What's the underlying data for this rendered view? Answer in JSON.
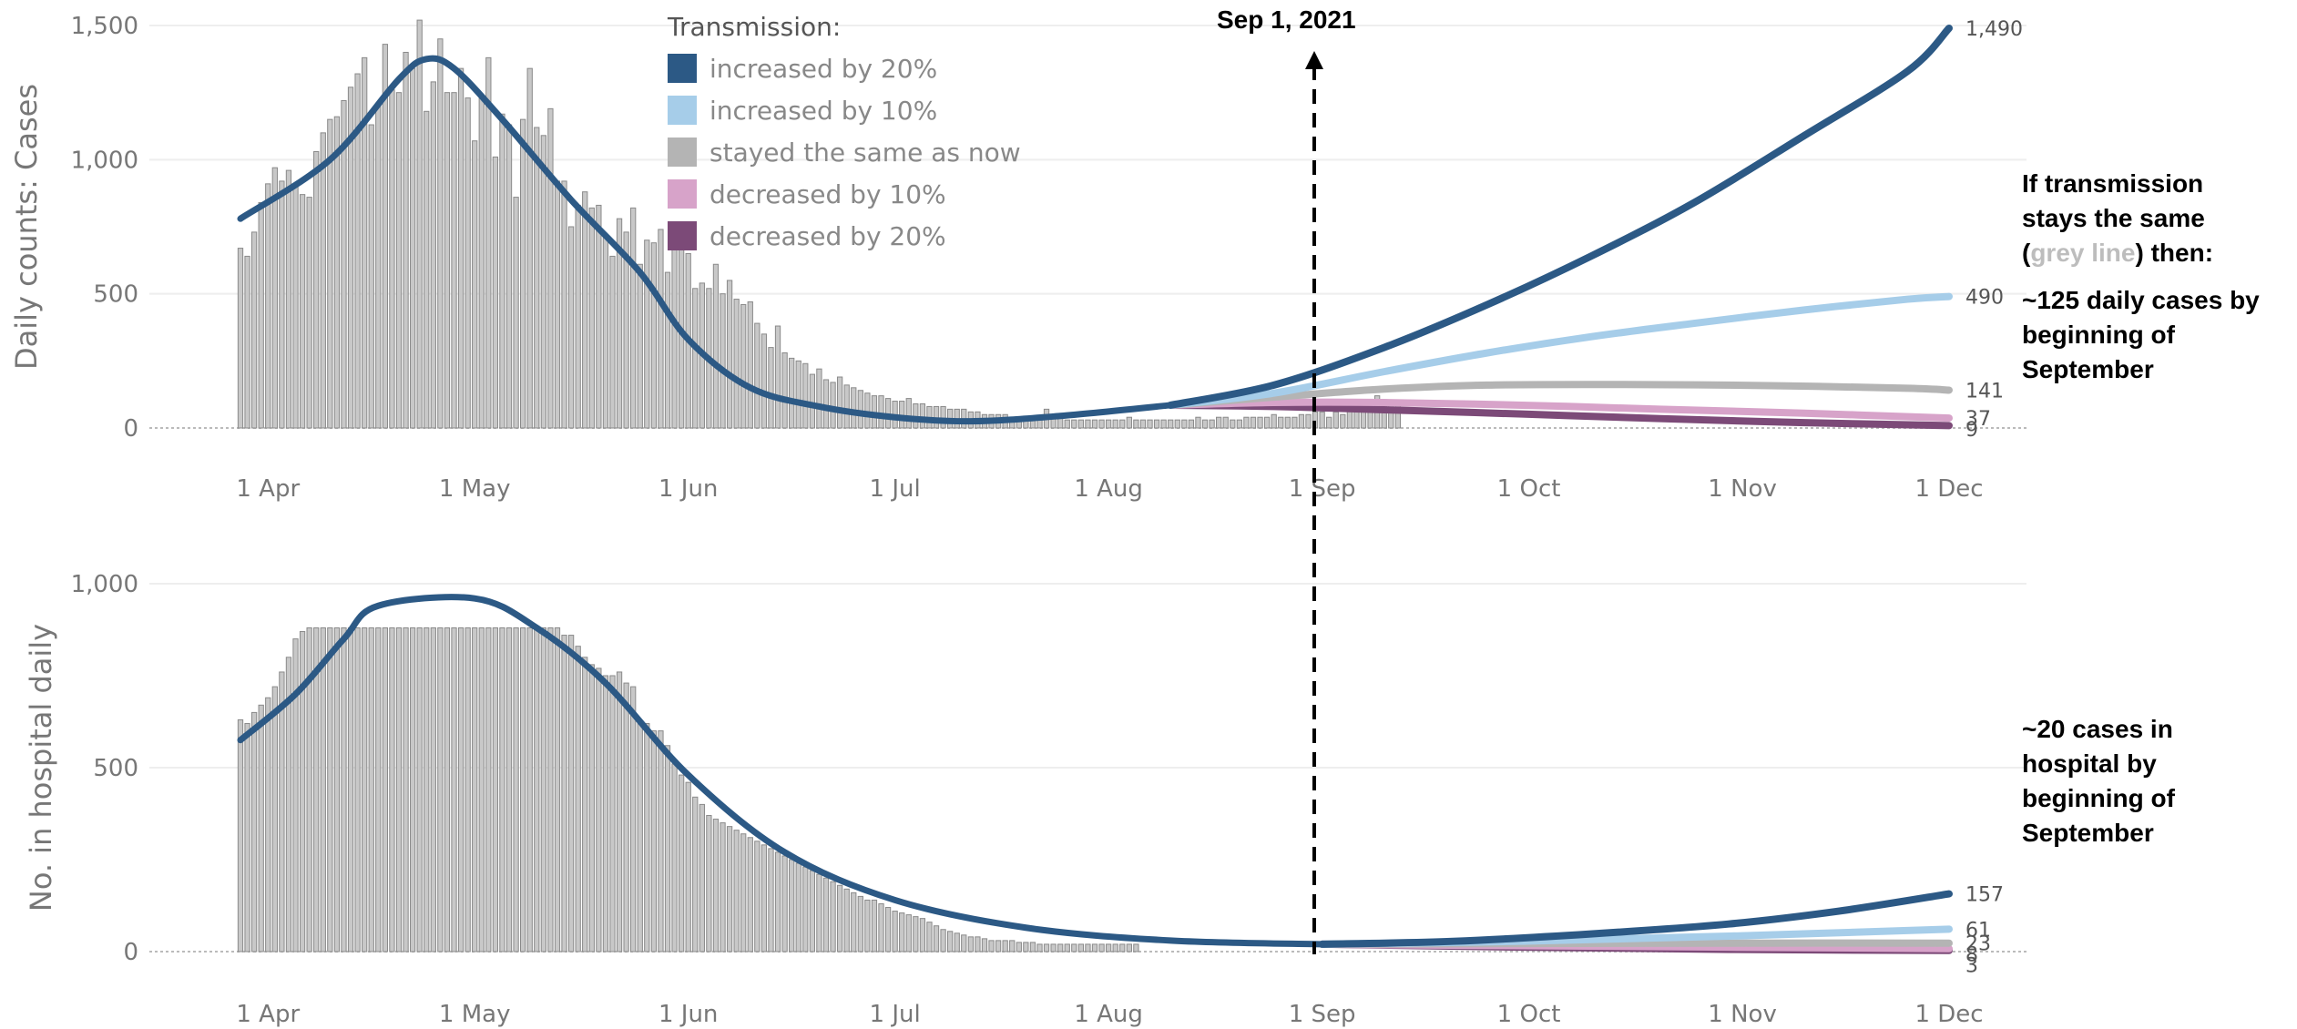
{
  "legend": {
    "title": "Transmission:",
    "items": [
      {
        "label": "increased by 20%",
        "color": "#2c5985"
      },
      {
        "label": "increased by 10%",
        "color": "#a6cde9"
      },
      {
        "label": "stayed the same as now",
        "color": "#b4b4b4"
      },
      {
        "label": "decreased by 10%",
        "color": "#d7a3c9"
      },
      {
        "label": "decreased by 20%",
        "color": "#7c4a78"
      }
    ]
  },
  "annotation": {
    "date_label": "Sep 1, 2021",
    "cases_text": {
      "line1": "If transmission",
      "line2": "stays the same",
      "line3_open": "(",
      "line3_grey": "grey line",
      "line3_close": ") then:",
      "line4": "~125 daily cases by",
      "line5": "beginning of",
      "line6": "September"
    },
    "hospital_text": {
      "line1": "~20 cases in",
      "line2": "hospital by",
      "line3": "beginning of",
      "line4": "September"
    }
  },
  "chart_data": [
    {
      "type": "bar",
      "ylabel": "Daily counts: Cases",
      "ylim": [
        0,
        1500
      ],
      "yticks": [
        0,
        500,
        1000,
        1500
      ],
      "ytick_labels": [
        "0",
        "500",
        "1,000",
        "1,500"
      ],
      "x_start": "2021-03-28",
      "x_end": "2021-12-01",
      "xtick_labels": [
        "1 Apr",
        "1 May",
        "1 Jun",
        "1 Jul",
        "1 Aug",
        "1 Sep",
        "1 Oct",
        "1 Nov",
        "1 Dec"
      ],
      "xtick_dates": [
        "2021-04-01",
        "2021-05-01",
        "2021-06-01",
        "2021-07-01",
        "2021-08-01",
        "2021-09-01",
        "2021-10-01",
        "2021-11-01",
        "2021-12-01"
      ],
      "bars_start_date": "2021-03-28",
      "bars": [
        670,
        640,
        730,
        840,
        910,
        970,
        920,
        960,
        900,
        870,
        860,
        1030,
        1100,
        1150,
        1160,
        1220,
        1270,
        1320,
        1380,
        1130,
        1210,
        1430,
        1260,
        1250,
        1400,
        1340,
        1520,
        1180,
        1290,
        1450,
        1250,
        1250,
        1340,
        1230,
        1070,
        1240,
        1380,
        1010,
        1170,
        1130,
        860,
        1150,
        1340,
        1120,
        1090,
        1190,
        920,
        920,
        750,
        830,
        880,
        820,
        830,
        710,
        640,
        780,
        730,
        820,
        610,
        700,
        690,
        740,
        580,
        760,
        680,
        650,
        520,
        540,
        520,
        610,
        500,
        550,
        480,
        460,
        470,
        390,
        350,
        300,
        380,
        280,
        260,
        250,
        240,
        200,
        220,
        180,
        170,
        190,
        160,
        150,
        140,
        130,
        120,
        120,
        110,
        100,
        100,
        110,
        90,
        90,
        80,
        80,
        80,
        70,
        70,
        70,
        60,
        60,
        50,
        50,
        50,
        50,
        40,
        40,
        40,
        40,
        40,
        70,
        40,
        40,
        30,
        30,
        30,
        30,
        30,
        30,
        30,
        30,
        30,
        40,
        30,
        30,
        30,
        30,
        30,
        30,
        30,
        30,
        30,
        40,
        30,
        30,
        40,
        40,
        30,
        30,
        40,
        40,
        40,
        40,
        50,
        40,
        40,
        40,
        50,
        50,
        60,
        60,
        40,
        60,
        50,
        70,
        60,
        80,
        70,
        120,
        100,
        100,
        100
      ],
      "fit_line": [
        [
          "2021-03-28",
          780
        ],
        [
          "2021-04-10",
          1000
        ],
        [
          "2021-04-20",
          1300
        ],
        [
          "2021-04-24",
          1375
        ],
        [
          "2021-04-28",
          1340
        ],
        [
          "2021-05-05",
          1150
        ],
        [
          "2021-05-15",
          850
        ],
        [
          "2021-05-25",
          580
        ],
        [
          "2021-06-01",
          330
        ],
        [
          "2021-06-10",
          150
        ],
        [
          "2021-06-20",
          80
        ],
        [
          "2021-07-01",
          40
        ],
        [
          "2021-07-12",
          25
        ],
        [
          "2021-07-25",
          45
        ],
        [
          "2021-08-10",
          85
        ]
      ],
      "series": [
        {
          "name": "increased by 20%",
          "color": "#2c5985",
          "end_label": "1,490",
          "points": [
            [
              "2021-08-10",
              85
            ],
            [
              "2021-08-25",
              160
            ],
            [
              "2021-09-10",
              300
            ],
            [
              "2021-09-25",
              460
            ],
            [
              "2021-10-10",
              640
            ],
            [
              "2021-10-25",
              840
            ],
            [
              "2021-11-10",
              1090
            ],
            [
              "2021-11-25",
              1330
            ],
            [
              "2021-12-01",
              1490
            ]
          ]
        },
        {
          "name": "increased by 10%",
          "color": "#a6cde9",
          "end_label": "490",
          "points": [
            [
              "2021-08-10",
              85
            ],
            [
              "2021-08-25",
              130
            ],
            [
              "2021-09-10",
              210
            ],
            [
              "2021-09-25",
              280
            ],
            [
              "2021-10-10",
              340
            ],
            [
              "2021-10-25",
              390
            ],
            [
              "2021-11-10",
              440
            ],
            [
              "2021-11-25",
              480
            ],
            [
              "2021-12-01",
              490
            ]
          ]
        },
        {
          "name": "stayed the same as now",
          "color": "#b4b4b4",
          "end_label": "141",
          "points": [
            [
              "2021-08-10",
              85
            ],
            [
              "2021-08-25",
              115
            ],
            [
              "2021-09-10",
              145
            ],
            [
              "2021-09-25",
              160
            ],
            [
              "2021-10-15",
              162
            ],
            [
              "2021-11-05",
              158
            ],
            [
              "2021-11-25",
              148
            ],
            [
              "2021-12-01",
              141
            ]
          ]
        },
        {
          "name": "decreased by 10%",
          "color": "#d7a3c9",
          "end_label": "37",
          "points": [
            [
              "2021-08-10",
              85
            ],
            [
              "2021-08-25",
              95
            ],
            [
              "2021-09-10",
              95
            ],
            [
              "2021-09-30",
              85
            ],
            [
              "2021-10-20",
              70
            ],
            [
              "2021-11-10",
              55
            ],
            [
              "2021-12-01",
              37
            ]
          ]
        },
        {
          "name": "decreased by 20%",
          "color": "#7c4a78",
          "end_label": "9",
          "points": [
            [
              "2021-08-10",
              85
            ],
            [
              "2021-08-25",
              80
            ],
            [
              "2021-09-10",
              68
            ],
            [
              "2021-09-30",
              52
            ],
            [
              "2021-10-20",
              35
            ],
            [
              "2021-11-10",
              20
            ],
            [
              "2021-12-01",
              9
            ]
          ]
        }
      ]
    },
    {
      "type": "bar",
      "ylabel": "No. in hospital daily",
      "ylim": [
        0,
        1000
      ],
      "yticks": [
        0,
        500,
        1000
      ],
      "ytick_labels": [
        "0",
        "500",
        "1,000"
      ],
      "x_start": "2021-03-28",
      "x_end": "2021-12-01",
      "xtick_labels": [
        "1 Apr",
        "1 May",
        "1 Jun",
        "1 Jul",
        "1 Aug",
        "1 Sep",
        "1 Oct",
        "1 Nov",
        "1 Dec"
      ],
      "xtick_dates": [
        "2021-04-01",
        "2021-05-01",
        "2021-06-01",
        "2021-07-01",
        "2021-08-01",
        "2021-09-01",
        "2021-10-01",
        "2021-11-01",
        "2021-12-01"
      ],
      "bars_start_date": "2021-03-28",
      "bars_clip": 880,
      "bars": [
        630,
        620,
        650,
        670,
        690,
        720,
        760,
        800,
        850,
        870,
        880,
        880,
        880,
        880,
        880,
        880,
        880,
        880,
        880,
        880,
        880,
        880,
        880,
        880,
        880,
        880,
        880,
        880,
        880,
        880,
        880,
        880,
        880,
        880,
        880,
        880,
        880,
        880,
        880,
        880,
        880,
        880,
        880,
        880,
        880,
        880,
        880,
        860,
        860,
        830,
        800,
        780,
        770,
        750,
        750,
        760,
        730,
        720,
        620,
        620,
        600,
        600,
        560,
        510,
        480,
        460,
        420,
        400,
        370,
        360,
        350,
        340,
        330,
        320,
        310,
        300,
        290,
        280,
        270,
        260,
        250,
        240,
        230,
        220,
        210,
        200,
        190,
        180,
        170,
        160,
        150,
        140,
        140,
        130,
        120,
        110,
        105,
        100,
        95,
        90,
        80,
        70,
        60,
        55,
        50,
        45,
        40,
        40,
        35,
        30,
        30,
        30,
        30,
        25,
        25,
        25,
        20,
        20,
        20,
        20,
        20,
        20,
        20,
        20,
        20,
        20,
        20,
        20,
        20,
        20,
        20
      ],
      "fit_line": [
        [
          "2021-03-28",
          575
        ],
        [
          "2021-04-05",
          700
        ],
        [
          "2021-04-12",
          850
        ],
        [
          "2021-04-17",
          940
        ],
        [
          "2021-05-01",
          960
        ],
        [
          "2021-05-10",
          880
        ],
        [
          "2021-05-20",
          730
        ],
        [
          "2021-06-01",
          480
        ],
        [
          "2021-06-15",
          270
        ],
        [
          "2021-07-01",
          140
        ],
        [
          "2021-07-20",
          65
        ],
        [
          "2021-08-10",
          30
        ],
        [
          "2021-09-01",
          20
        ]
      ],
      "series": [
        {
          "name": "increased by 20%",
          "color": "#2c5985",
          "end_label": "157",
          "points": [
            [
              "2021-09-01",
              20
            ],
            [
              "2021-09-20",
              28
            ],
            [
              "2021-10-10",
              48
            ],
            [
              "2021-10-30",
              75
            ],
            [
              "2021-11-15",
              110
            ],
            [
              "2021-12-01",
              157
            ]
          ]
        },
        {
          "name": "increased by 10%",
          "color": "#a6cde9",
          "end_label": "61",
          "points": [
            [
              "2021-09-01",
              20
            ],
            [
              "2021-09-30",
              28
            ],
            [
              "2021-10-30",
              42
            ],
            [
              "2021-12-01",
              61
            ]
          ]
        },
        {
          "name": "stayed the same as now",
          "color": "#b4b4b4",
          "end_label": "23",
          "points": [
            [
              "2021-09-01",
              20
            ],
            [
              "2021-09-30",
              22
            ],
            [
              "2021-10-30",
              23
            ],
            [
              "2021-12-01",
              23
            ]
          ]
        },
        {
          "name": "decreased by 10%",
          "color": "#d7a3c9",
          "end_label": "8",
          "points": [
            [
              "2021-09-01",
              20
            ],
            [
              "2021-09-30",
              16
            ],
            [
              "2021-10-30",
              12
            ],
            [
              "2021-12-01",
              8
            ]
          ]
        },
        {
          "name": "decreased by 20%",
          "color": "#7c4a78",
          "end_label": "3",
          "points": [
            [
              "2021-09-01",
              20
            ],
            [
              "2021-09-30",
              12
            ],
            [
              "2021-10-30",
              6
            ],
            [
              "2021-12-01",
              3
            ]
          ]
        }
      ]
    }
  ]
}
